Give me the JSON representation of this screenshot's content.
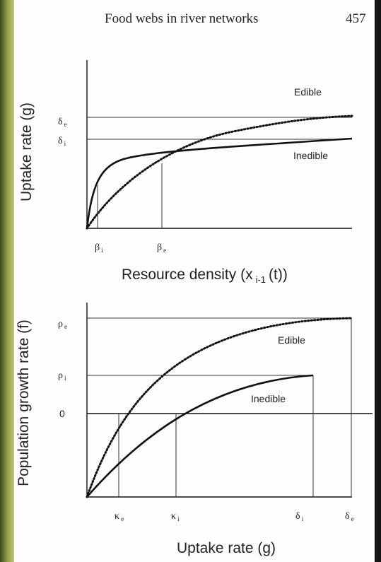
{
  "header": {
    "title": "Food webs in river networks",
    "page": "457"
  },
  "panels": [
    {
      "y_label": "Uptake rate (g)",
      "x_label": {
        "main": "Resource density (x",
        "subscript": "i-1",
        "tail": "(t))"
      },
      "y_ticks": [
        {
          "symbol": "δ",
          "subscript": "e"
        },
        {
          "symbol": "δ",
          "subscript": "i"
        }
      ],
      "x_ticks": [
        {
          "symbol": "β",
          "subscript": "i"
        },
        {
          "symbol": "β",
          "subscript": "e"
        }
      ],
      "curve_labels": [
        "Edible",
        "Inedible"
      ]
    },
    {
      "y_label": "Population growth rate (f)",
      "x_label": {
        "main": "Uptake rate (g)"
      },
      "y_ticks": [
        {
          "symbol": "ρ",
          "subscript": "e"
        },
        {
          "symbol": "ρ",
          "subscript": "i"
        },
        {
          "symbol": "0"
        }
      ],
      "x_ticks": [
        {
          "symbol": "κ",
          "subscript": "e"
        },
        {
          "symbol": "κ",
          "subscript": "i"
        },
        {
          "symbol": "δ",
          "subscript": "i"
        },
        {
          "symbol": "δ",
          "subscript": "e"
        }
      ],
      "curve_labels": [
        "Edible",
        "Inedible"
      ]
    }
  ]
}
